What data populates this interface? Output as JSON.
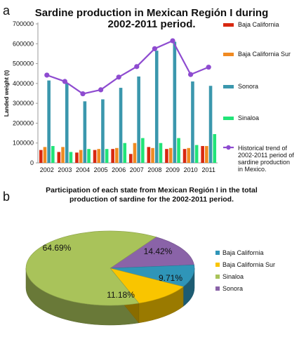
{
  "figure": {
    "panel_a": "a",
    "panel_b": "b"
  },
  "chart_data": [
    {
      "type": "bar",
      "title": "Sardine production in Mexican Región I during 2002-2011 period.",
      "title_lines": [
        "Sardine production in Mexican Región I during",
        "2002-2011 period."
      ],
      "xlabel": "",
      "ylabel": "Landed weight (t)",
      "categories": [
        "2002",
        "2003",
        "2004",
        "2005",
        "2006",
        "2007",
        "2008",
        "2009",
        "2010",
        "2011"
      ],
      "ylim": [
        0,
        700000
      ],
      "yticks": [
        0,
        100000,
        200000,
        300000,
        400000,
        500000,
        600000,
        700000
      ],
      "grid": false,
      "legend_position": "right",
      "series": [
        {
          "name": "Baja California",
          "color": "#d82810",
          "values": [
            65000,
            55000,
            52000,
            65000,
            70000,
            45000,
            80000,
            70000,
            70000,
            85000
          ]
        },
        {
          "name": "Baja California Sur",
          "color": "#f08a22",
          "values": [
            80000,
            80000,
            65000,
            70000,
            75000,
            100000,
            75000,
            75000,
            75000,
            85000
          ]
        },
        {
          "name": "Sonora",
          "color": "#3b97ad",
          "values": [
            415000,
            400000,
            310000,
            320000,
            378000,
            435000,
            565000,
            610000,
            410000,
            388000
          ]
        },
        {
          "name": "Sinaloa",
          "color": "#21e478",
          "values": [
            85000,
            55000,
            70000,
            70000,
            100000,
            125000,
            100000,
            125000,
            90000,
            145000
          ]
        }
      ],
      "trend_series": {
        "name": "Historical trend of 2002-2011 period of sardine production in Mexico.",
        "name_lines": [
          "Historical trend of",
          "2002-2011 period of",
          "sardine production",
          "in Mexico."
        ],
        "color": "#8e4bd0",
        "values": [
          442000,
          410000,
          348000,
          368000,
          432000,
          485000,
          575000,
          615000,
          445000,
          482000
        ]
      }
    },
    {
      "type": "pie",
      "title": "Participation of each state from Mexican Región I in the total production of sardine for the 2002-2011 period.",
      "title_lines": [
        "Participation of each state from Mexican Región I in the total",
        "production of sardine for the 2002-2011 period."
      ],
      "legend_position": "right",
      "legend_order": [
        "Baja California",
        "Baja California Sur",
        "Sinaloa",
        "Sonora"
      ],
      "slices": [
        {
          "name": "Baja California",
          "value": 9.71,
          "label": "9.71%",
          "color": "#2f95b8"
        },
        {
          "name": "Baja California Sur",
          "value": 11.18,
          "label": "11.18%",
          "color": "#f9c500"
        },
        {
          "name": "Sinaloa",
          "value": 64.69,
          "label": "64.69%",
          "color": "#a9c35a"
        },
        {
          "name": "Sonora",
          "value": 14.42,
          "label": "14.42%",
          "color": "#8a63a8"
        }
      ]
    }
  ]
}
